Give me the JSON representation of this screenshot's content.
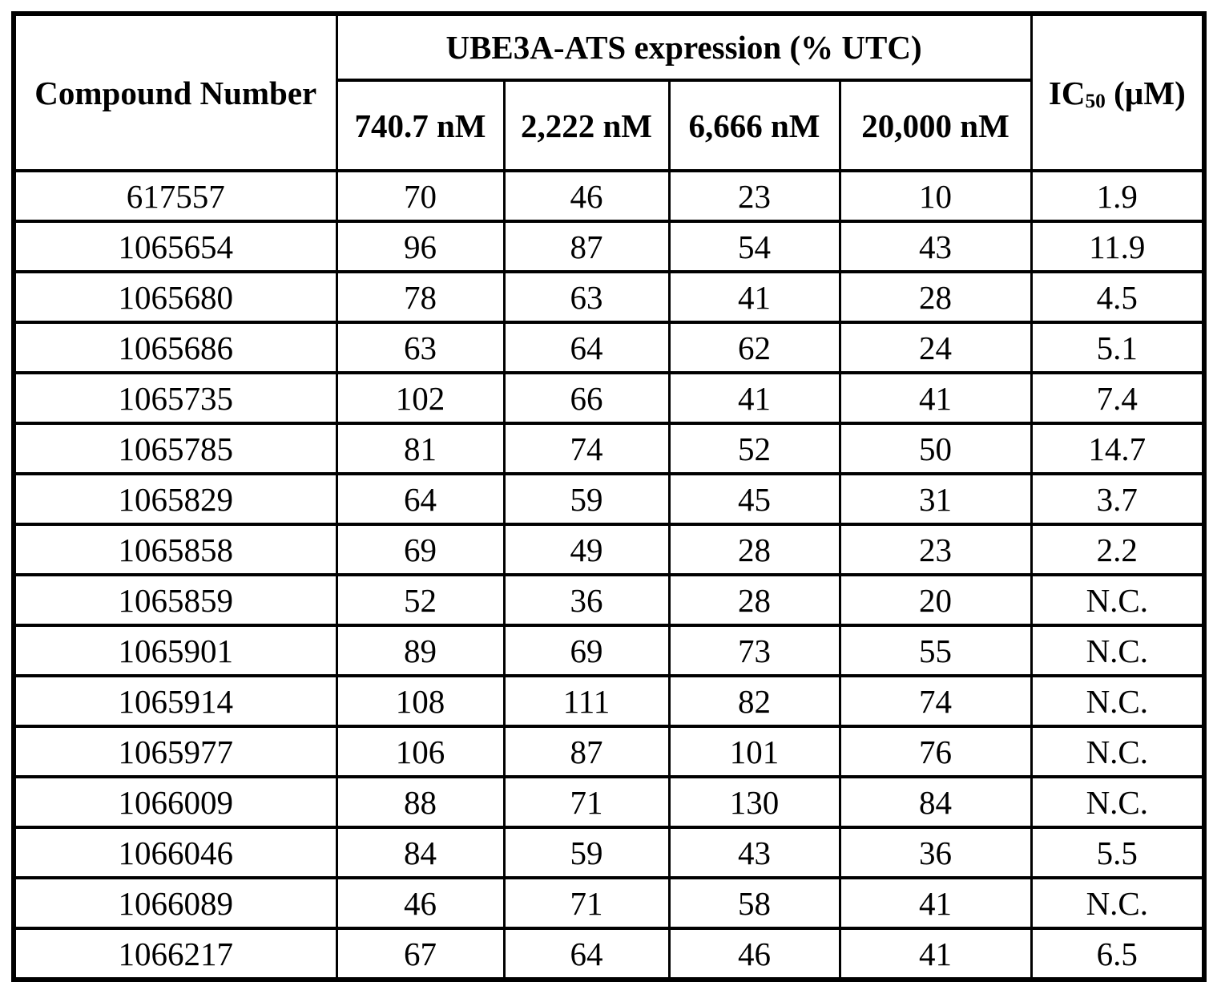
{
  "table": {
    "compound_header": "Compound Number",
    "group_header": "UBE3A-ATS expression (% UTC)",
    "ic50_header": {
      "prefix": "IC",
      "subscript": "50",
      "suffix": " (µM)"
    },
    "concentration_headers": [
      "740.7 nM",
      "2,222 nM",
      "6,666 nM",
      "20,000 nM"
    ],
    "rows": [
      {
        "compound": "617557",
        "values": [
          "70",
          "46",
          "23",
          "10"
        ],
        "ic50": "1.9"
      },
      {
        "compound": "1065654",
        "values": [
          "96",
          "87",
          "54",
          "43"
        ],
        "ic50": "11.9"
      },
      {
        "compound": "1065680",
        "values": [
          "78",
          "63",
          "41",
          "28"
        ],
        "ic50": "4.5"
      },
      {
        "compound": "1065686",
        "values": [
          "63",
          "64",
          "62",
          "24"
        ],
        "ic50": "5.1"
      },
      {
        "compound": "1065735",
        "values": [
          "102",
          "66",
          "41",
          "41"
        ],
        "ic50": "7.4"
      },
      {
        "compound": "1065785",
        "values": [
          "81",
          "74",
          "52",
          "50"
        ],
        "ic50": "14.7"
      },
      {
        "compound": "1065829",
        "values": [
          "64",
          "59",
          "45",
          "31"
        ],
        "ic50": "3.7"
      },
      {
        "compound": "1065858",
        "values": [
          "69",
          "49",
          "28",
          "23"
        ],
        "ic50": "2.2"
      },
      {
        "compound": "1065859",
        "values": [
          "52",
          "36",
          "28",
          "20"
        ],
        "ic50": "N.C."
      },
      {
        "compound": "1065901",
        "values": [
          "89",
          "69",
          "73",
          "55"
        ],
        "ic50": "N.C."
      },
      {
        "compound": "1065914",
        "values": [
          "108",
          "111",
          "82",
          "74"
        ],
        "ic50": "N.C."
      },
      {
        "compound": "1065977",
        "values": [
          "106",
          "87",
          "101",
          "76"
        ],
        "ic50": "N.C."
      },
      {
        "compound": "1066009",
        "values": [
          "88",
          "71",
          "130",
          "84"
        ],
        "ic50": "N.C."
      },
      {
        "compound": "1066046",
        "values": [
          "84",
          "59",
          "43",
          "36"
        ],
        "ic50": "5.5"
      },
      {
        "compound": "1066089",
        "values": [
          "46",
          "71",
          "58",
          "41"
        ],
        "ic50": "N.C."
      },
      {
        "compound": "1066217",
        "values": [
          "67",
          "64",
          "46",
          "41"
        ],
        "ic50": "6.5"
      }
    ]
  },
  "chart_data": {
    "type": "table",
    "title": "UBE3A-ATS expression (% UTC)",
    "columns": [
      "Compound Number",
      "740.7 nM",
      "2,222 nM",
      "6,666 nM",
      "20,000 nM",
      "IC50 (µM)"
    ],
    "rows": [
      [
        "617557",
        70,
        46,
        23,
        10,
        "1.9"
      ],
      [
        "1065654",
        96,
        87,
        54,
        43,
        "11.9"
      ],
      [
        "1065680",
        78,
        63,
        41,
        28,
        "4.5"
      ],
      [
        "1065686",
        63,
        64,
        62,
        24,
        "5.1"
      ],
      [
        "1065735",
        102,
        66,
        41,
        41,
        "7.4"
      ],
      [
        "1065785",
        81,
        74,
        52,
        50,
        "14.7"
      ],
      [
        "1065829",
        64,
        59,
        45,
        31,
        "3.7"
      ],
      [
        "1065858",
        69,
        49,
        28,
        23,
        "2.2"
      ],
      [
        "1065859",
        52,
        36,
        28,
        20,
        "N.C."
      ],
      [
        "1065901",
        89,
        69,
        73,
        55,
        "N.C."
      ],
      [
        "1065914",
        108,
        111,
        82,
        74,
        "N.C."
      ],
      [
        "1065977",
        106,
        87,
        101,
        76,
        "N.C."
      ],
      [
        "1066009",
        88,
        71,
        130,
        84,
        "N.C."
      ],
      [
        "1066046",
        84,
        59,
        43,
        36,
        "5.5"
      ],
      [
        "1066089",
        46,
        71,
        58,
        41,
        "N.C."
      ],
      [
        "1066217",
        67,
        64,
        46,
        41,
        "6.5"
      ]
    ]
  }
}
